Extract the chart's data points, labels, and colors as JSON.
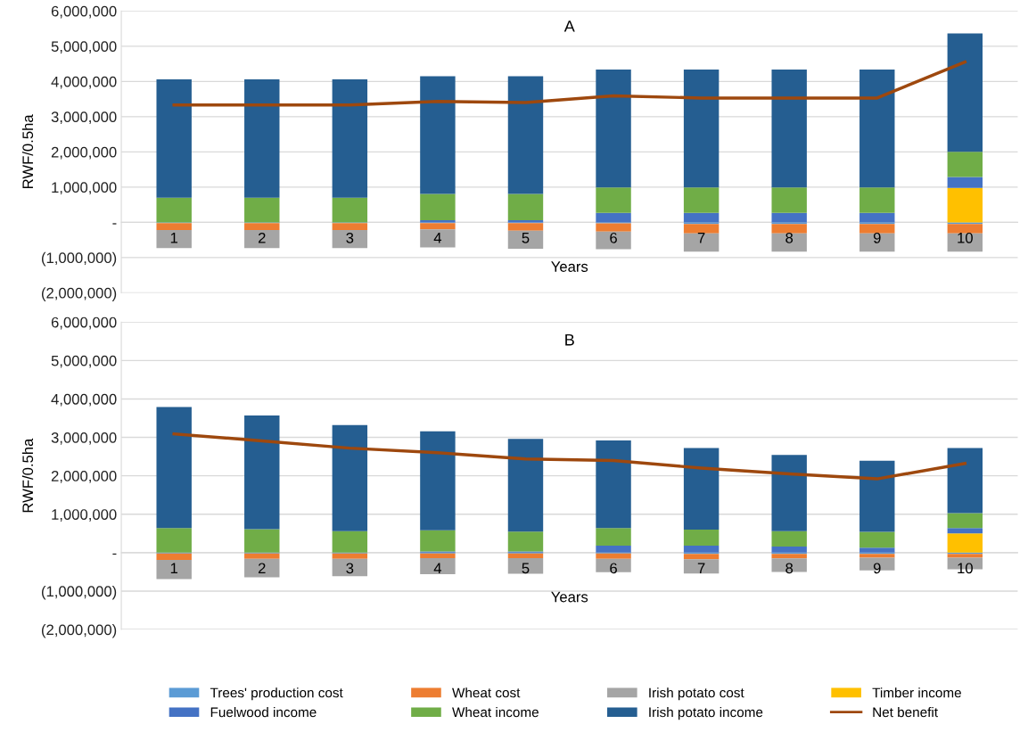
{
  "chart_data": [
    {
      "type": "bar",
      "stacked": true,
      "title": "A",
      "xlabel": "Years",
      "ylabel": "RWF/0.5ha",
      "categories": [
        "1",
        "2",
        "3",
        "4",
        "5",
        "6",
        "7",
        "8",
        "9",
        "10"
      ],
      "ylim": [
        -2000000,
        6000000
      ],
      "yticks": [
        {
          "value": -2000000,
          "label": "(2,000,000)"
        },
        {
          "value": -1000000,
          "label": "(1,000,000)"
        },
        {
          "value": 0,
          "label": "-"
        },
        {
          "value": 1000000,
          "label": "1,000,000"
        },
        {
          "value": 2000000,
          "label": "2,000,000"
        },
        {
          "value": 3000000,
          "label": "3,000,000"
        },
        {
          "value": 4000000,
          "label": "4,000,000"
        },
        {
          "value": 5000000,
          "label": "5,000,000"
        },
        {
          "value": 6000000,
          "label": "6,000,000"
        }
      ],
      "grid": "y",
      "legend": "bottom",
      "series": [
        {
          "name": "Trees' production cost",
          "color": "#5b9bd5",
          "values": [
            -20000,
            -20000,
            -20000,
            -20000,
            -20000,
            -30000,
            -50000,
            -50000,
            -50000,
            -50000
          ]
        },
        {
          "name": "Wheat cost",
          "color": "#ed7d31",
          "values": [
            -200000,
            -200000,
            -200000,
            -180000,
            -220000,
            -230000,
            -260000,
            -260000,
            -260000,
            -260000
          ]
        },
        {
          "name": "Irish potato cost",
          "color": "#a5a5a5",
          "values": [
            -510000,
            -510000,
            -510000,
            -510000,
            -510000,
            -500000,
            -520000,
            -520000,
            -520000,
            -520000
          ]
        },
        {
          "name": "Timber income",
          "color": "#ffc000",
          "values": [
            0,
            0,
            0,
            0,
            0,
            0,
            0,
            0,
            0,
            980000
          ]
        },
        {
          "name": "Fuelwood income",
          "color": "#4472c4",
          "values": [
            0,
            0,
            0,
            60000,
            60000,
            270000,
            270000,
            270000,
            270000,
            310000
          ]
        },
        {
          "name": "Wheat income",
          "color": "#70ad47",
          "values": [
            700000,
            700000,
            700000,
            750000,
            750000,
            720000,
            720000,
            720000,
            720000,
            710000
          ]
        },
        {
          "name": "Irish potato income",
          "color": "#255e91",
          "values": [
            3360000,
            3360000,
            3360000,
            3340000,
            3340000,
            3350000,
            3350000,
            3350000,
            3350000,
            3360000
          ]
        },
        {
          "name": "Net benefit",
          "type": "line",
          "color": "#9e480e",
          "values": [
            3330000,
            3330000,
            3330000,
            3430000,
            3400000,
            3590000,
            3530000,
            3530000,
            3530000,
            4550000
          ]
        }
      ]
    },
    {
      "type": "bar",
      "stacked": true,
      "title": "B",
      "xlabel": "Years",
      "ylabel": "RWF/0.5ha",
      "categories": [
        "1",
        "2",
        "3",
        "4",
        "5",
        "6",
        "7",
        "8",
        "9",
        "10"
      ],
      "ylim": [
        -2000000,
        6000000
      ],
      "yticks": [
        {
          "value": -2000000,
          "label": "(2,000,000)"
        },
        {
          "value": -1000000,
          "label": "(1,000,000)"
        },
        {
          "value": 0,
          "label": "-"
        },
        {
          "value": 1000000,
          "label": "1,000,000"
        },
        {
          "value": 2000000,
          "label": "2,000,000"
        },
        {
          "value": 3000000,
          "label": "3,000,000"
        },
        {
          "value": 4000000,
          "label": "4,000,000"
        },
        {
          "value": 5000000,
          "label": "5,000,000"
        },
        {
          "value": 6000000,
          "label": "6,000,000"
        }
      ],
      "grid": "y",
      "series": [
        {
          "color": "#5b9bd5",
          "values": [
            -20000,
            -20000,
            -20000,
            -20000,
            -20000,
            -20000,
            -30000,
            -30000,
            -30000,
            -30000
          ]
        },
        {
          "color": "#ed7d31",
          "values": [
            -170000,
            -140000,
            -140000,
            -120000,
            -120000,
            -140000,
            -140000,
            -120000,
            -100000,
            -100000
          ]
        },
        {
          "color": "#a5a5a5",
          "values": [
            -500000,
            -480000,
            -450000,
            -420000,
            -410000,
            -350000,
            -370000,
            -350000,
            -330000,
            -300000
          ]
        },
        {
          "color": "#ffc000",
          "values": [
            0,
            0,
            0,
            0,
            0,
            0,
            0,
            0,
            0,
            500000
          ]
        },
        {
          "color": "#4472c4",
          "values": [
            0,
            0,
            0,
            30000,
            30000,
            180000,
            180000,
            160000,
            130000,
            140000
          ]
        },
        {
          "color": "#70ad47",
          "values": [
            640000,
            610000,
            560000,
            550000,
            520000,
            460000,
            420000,
            400000,
            410000,
            390000
          ]
        },
        {
          "color": "#255e91",
          "values": [
            3150000,
            2960000,
            2760000,
            2580000,
            2410000,
            2280000,
            2120000,
            1980000,
            1850000,
            1690000
          ]
        },
        {
          "type": "line",
          "color": "#9e480e",
          "values": [
            3090000,
            2910000,
            2720000,
            2600000,
            2440000,
            2400000,
            2200000,
            2050000,
            1920000,
            2320000
          ]
        }
      ]
    }
  ]
}
